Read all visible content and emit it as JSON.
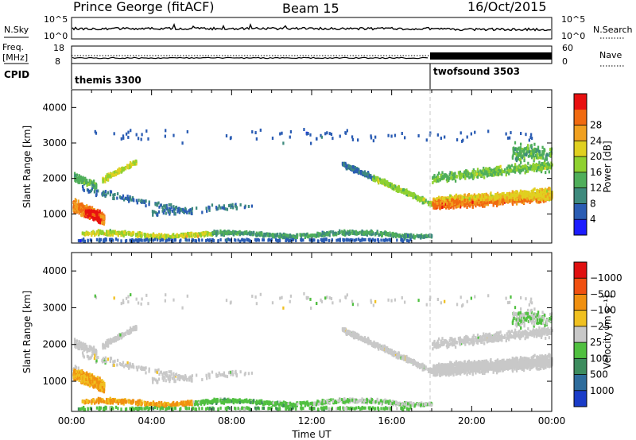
{
  "header": {
    "station": "Prince George (fitACF)",
    "beam": "Beam 15",
    "date": "16/Oct/2015"
  },
  "top_panels": {
    "nsky_label": "N.Sky",
    "nsky_ticks": [
      "10^5",
      "10^0"
    ],
    "nsearch_label": "N.Search",
    "nsearch_ticks": [
      "10^5",
      "10^0"
    ],
    "freq_label_1": "Freq.",
    "freq_label_2": "[MHz]",
    "freq_ticks": [
      "18",
      "8"
    ],
    "nave_label": "Nave",
    "nave_ticks": [
      "60",
      "0"
    ],
    "cpid_label": "CPID",
    "cpid_segments": [
      {
        "name": "themis 3300",
        "start_hour": 0,
        "end_hour": 18
      },
      {
        "name": "twofsound 3503",
        "start_hour": 18,
        "end_hour": 24
      }
    ]
  },
  "chart_data": [
    {
      "type": "heatmap",
      "name": "power",
      "ylabel": "Slant Range [km]",
      "ylim": [
        180,
        4500
      ],
      "yticks": [
        1000,
        2000,
        3000,
        4000
      ],
      "xlim_hours": [
        0,
        24
      ],
      "colorbar": {
        "label": "Power [dB]",
        "ticks": [
          "4",
          "8",
          "12",
          "16",
          "20",
          "24",
          "28"
        ],
        "colors": [
          "#1c1cff",
          "#2a5cb3",
          "#3e8a7d",
          "#4fae5a",
          "#8fd130",
          "#e0d020",
          "#f0a020",
          "#f06a10",
          "#e81010"
        ]
      }
    },
    {
      "type": "heatmap",
      "name": "velocity",
      "ylabel": "Slant Range [km]",
      "ylim": [
        180,
        4500
      ],
      "yticks": [
        1000,
        2000,
        3000,
        4000
      ],
      "xlim_hours": [
        0,
        24
      ],
      "xticks": [
        "00:00",
        "04:00",
        "08:00",
        "12:00",
        "16:00",
        "20:00",
        "00:00"
      ],
      "xlabel": "Time UT",
      "colorbar": {
        "label": "Velocity [m s⁻¹]",
        "ticks": [
          "1000",
          "500",
          "100",
          "25",
          "−25",
          "−100",
          "−500",
          "−1000"
        ],
        "colors": [
          "#1a3cc8",
          "#2e6c9c",
          "#3d8c5e",
          "#50c040",
          "#c8c8c8",
          "#f0c020",
          "#f09010",
          "#f05010",
          "#e01010"
        ]
      }
    }
  ]
}
